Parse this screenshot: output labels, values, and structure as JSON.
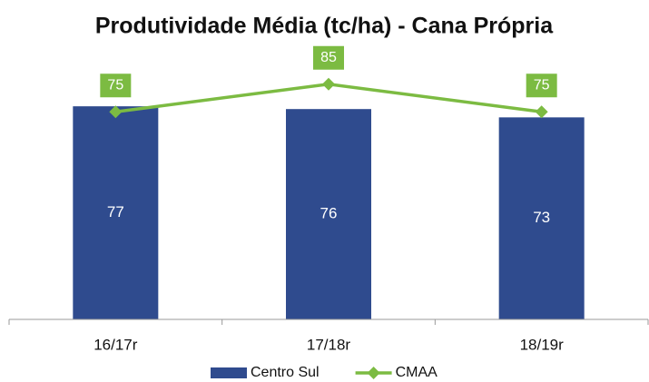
{
  "chart_data": {
    "type": "bar",
    "title": "Produtividade Média (tc/ha) - Cana Própria",
    "categories": [
      "16/17r",
      "17/18r",
      "18/19r"
    ],
    "series": [
      {
        "name": "Centro Sul",
        "type": "bar",
        "color": "#2f4b8e",
        "values": [
          77,
          76,
          73
        ]
      },
      {
        "name": "CMAA",
        "type": "line",
        "color": "#7cbb42",
        "values": [
          75,
          85,
          75
        ]
      }
    ],
    "ylim": [
      0,
      100
    ],
    "legend": "bottom"
  }
}
